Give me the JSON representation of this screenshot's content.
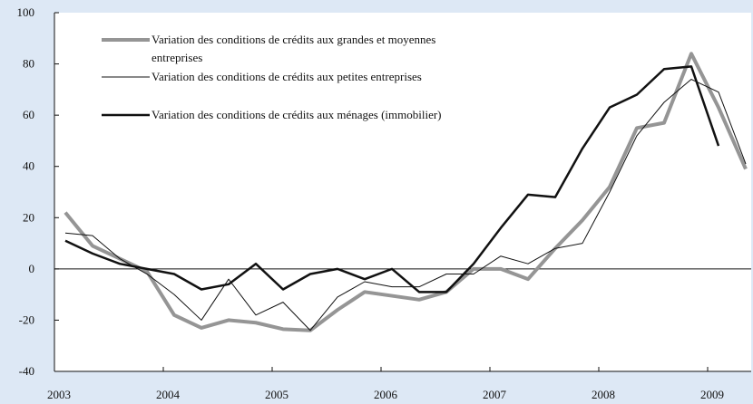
{
  "chart_data": {
    "type": "line",
    "x": [
      2003.1,
      2003.35,
      2003.6,
      2003.85,
      2004.1,
      2004.35,
      2004.6,
      2004.85,
      2005.1,
      2005.35,
      2005.6,
      2005.85,
      2006.1,
      2006.35,
      2006.6,
      2006.85,
      2007.1,
      2007.35,
      2007.6,
      2007.85,
      2008.1,
      2008.35,
      2008.6,
      2008.85,
      2009.1,
      2009.35
    ],
    "series": [
      {
        "name": "Variation des conditions de crédits aux grandes et moyennes entreprises",
        "color": "#959595",
        "width": 4,
        "values": [
          22,
          9,
          4,
          -1,
          -18,
          -23,
          -20,
          -21,
          -23.5,
          -24,
          -16,
          -9,
          -10.5,
          -12,
          -9,
          0,
          0,
          -4,
          8,
          19,
          32,
          55,
          57,
          84,
          63,
          39
        ]
      },
      {
        "name": "Variation des conditions de crédits aux petites entreprises",
        "color": "#111111",
        "width": 1,
        "values": [
          14,
          13,
          4,
          -2,
          -10,
          -20,
          -4,
          -18,
          -13,
          -24,
          -11,
          -5,
          -7,
          -7,
          -2,
          -2,
          5,
          2,
          8,
          10,
          30,
          52,
          65,
          74,
          69,
          41
        ]
      },
      {
        "name": "Variation des conditions de crédits aux ménages (immobilier)",
        "color": "#111111",
        "width": 2.5,
        "values": [
          11,
          6,
          2,
          0,
          -2,
          -8,
          -6,
          2,
          -8,
          -2,
          0,
          -4,
          0,
          -9,
          -9,
          2,
          16,
          29,
          28,
          47,
          63,
          68,
          78,
          79,
          48,
          null
        ]
      }
    ],
    "xlim": [
      2003,
      2009.4
    ],
    "xticks": [
      2003,
      2004,
      2005,
      2006,
      2007,
      2008,
      2009
    ],
    "ylim": [
      -40,
      100
    ],
    "yticks": [
      -40,
      -20,
      0,
      20,
      40,
      60,
      80,
      100
    ]
  }
}
